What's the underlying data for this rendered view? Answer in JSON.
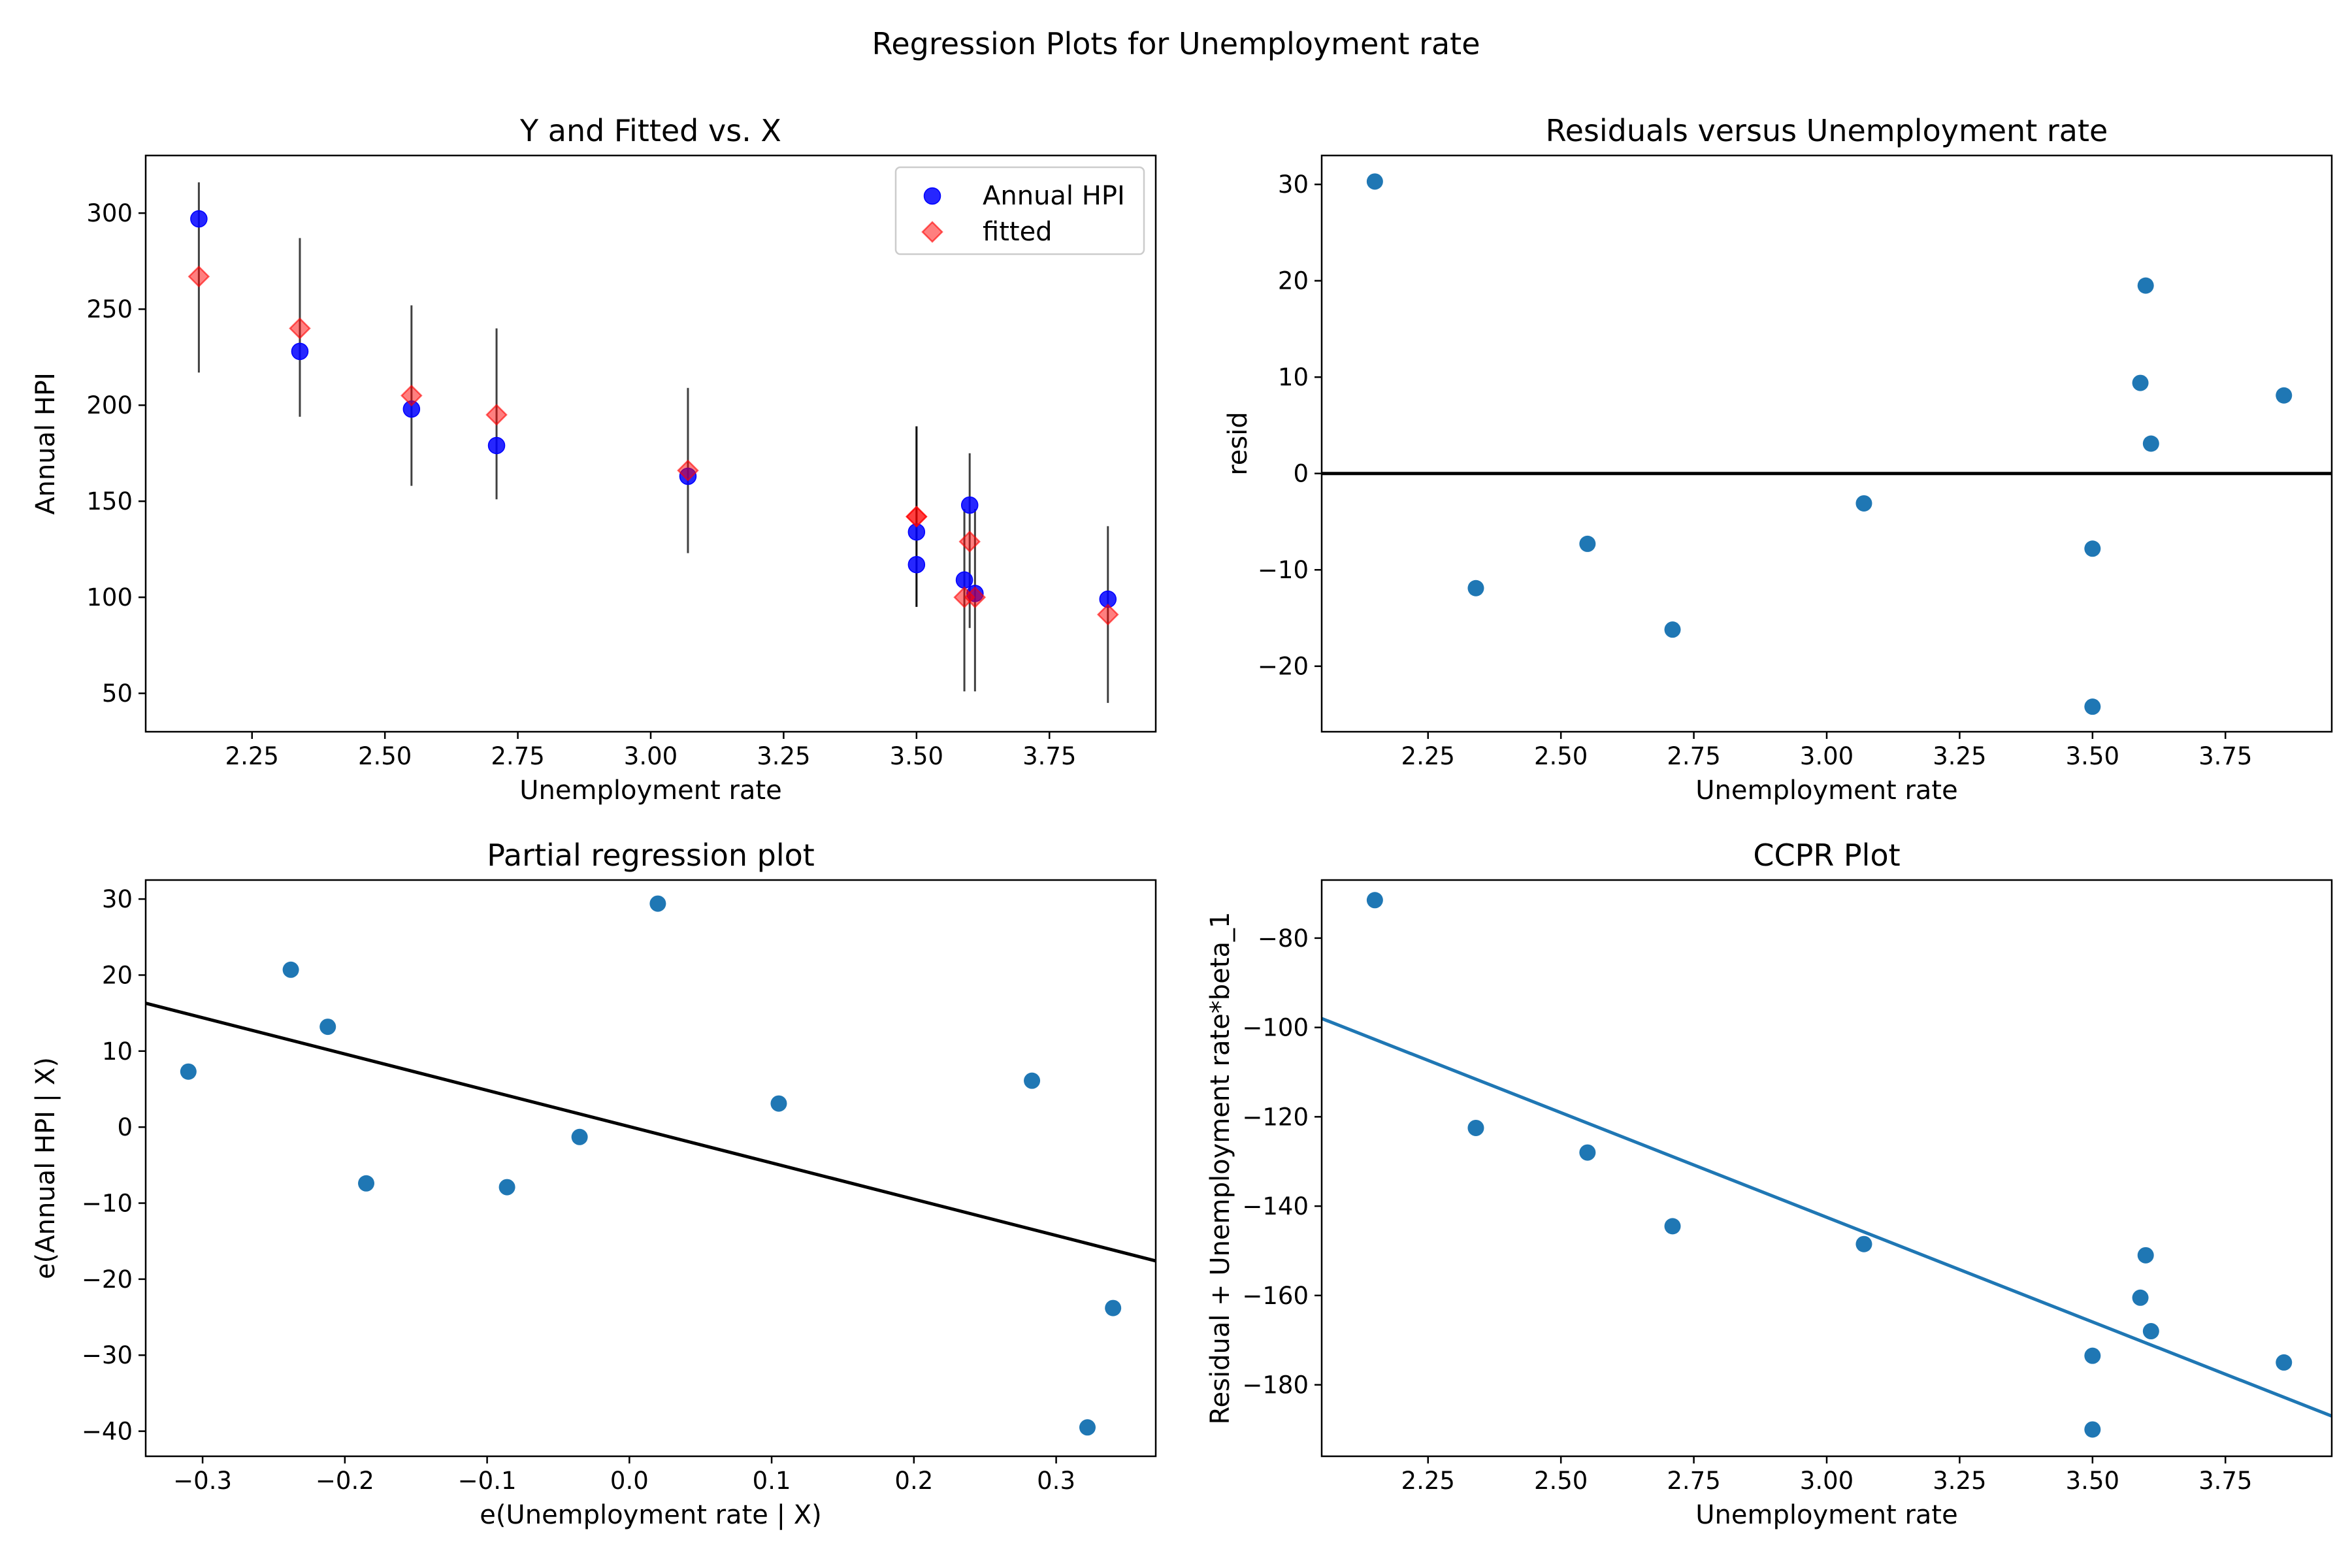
{
  "figure": {
    "suptitle": "Regression Plots for Unemployment rate"
  },
  "colors": {
    "observed": "#0000ff",
    "fitted": "#ff0000",
    "scatter": "#1f77b4",
    "line_black": "#000000",
    "line_blue": "#1f77b4",
    "errorbar": "#000000"
  },
  "chart_data": [
    {
      "id": "yfit",
      "type": "scatter",
      "title": "Y and Fitted vs. X",
      "xlabel": "Unemployment rate",
      "ylabel": "Annual HPI",
      "xlim": [
        2.05,
        3.95
      ],
      "ylim": [
        30,
        330
      ],
      "xticks": [
        2.25,
        2.5,
        2.75,
        3.0,
        3.25,
        3.5,
        3.75
      ],
      "xtick_labels": [
        "2.25",
        "2.50",
        "2.75",
        "3.00",
        "3.25",
        "3.50",
        "3.75"
      ],
      "yticks": [
        50,
        100,
        150,
        200,
        250,
        300
      ],
      "ytick_labels": [
        "50",
        "100",
        "150",
        "200",
        "250",
        "300"
      ],
      "legend": {
        "placement": "upper-right",
        "entries": [
          "Annual HPI",
          "fitted"
        ]
      },
      "series": [
        {
          "name": "Annual HPI",
          "marker": "circle",
          "points": [
            [
              2.15,
              297
            ],
            [
              2.34,
              228
            ],
            [
              2.55,
              198
            ],
            [
              2.71,
              179
            ],
            [
              3.07,
              163
            ],
            [
              3.5,
              134
            ],
            [
              3.5,
              117
            ],
            [
              3.59,
              109
            ],
            [
              3.6,
              148
            ],
            [
              3.61,
              102
            ],
            [
              3.86,
              99
            ]
          ]
        },
        {
          "name": "fitted",
          "marker": "diamond",
          "points": [
            [
              2.15,
              267
            ],
            [
              2.34,
              240
            ],
            [
              2.55,
              205
            ],
            [
              2.71,
              195
            ],
            [
              3.07,
              166
            ],
            [
              3.5,
              142
            ],
            [
              3.5,
              142
            ],
            [
              3.59,
              100
            ],
            [
              3.6,
              129
            ],
            [
              3.61,
              100
            ],
            [
              3.86,
              91
            ]
          ]
        }
      ],
      "errorbars": [
        [
          2.15,
          217,
          316
        ],
        [
          2.34,
          194,
          287
        ],
        [
          2.55,
          158,
          252
        ],
        [
          2.71,
          151,
          240
        ],
        [
          3.07,
          123,
          209
        ],
        [
          3.5,
          95,
          189
        ],
        [
          3.5,
          95,
          189
        ],
        [
          3.59,
          51,
          146
        ],
        [
          3.6,
          84,
          175
        ],
        [
          3.61,
          51,
          146
        ],
        [
          3.86,
          45,
          137
        ]
      ]
    },
    {
      "id": "resid",
      "type": "scatter",
      "title": "Residuals versus Unemployment rate",
      "xlabel": "Unemployment rate",
      "ylabel": "resid",
      "xlim": [
        2.05,
        3.95
      ],
      "ylim": [
        -26.8,
        33
      ],
      "xticks": [
        2.25,
        2.5,
        2.75,
        3.0,
        3.25,
        3.5,
        3.75
      ],
      "xtick_labels": [
        "2.25",
        "2.50",
        "2.75",
        "3.00",
        "3.25",
        "3.50",
        "3.75"
      ],
      "yticks": [
        -20,
        -10,
        0,
        10,
        20,
        30
      ],
      "ytick_labels": [
        "−20",
        "−10",
        "0",
        "10",
        "20",
        "30"
      ],
      "hline": 0,
      "points": [
        [
          2.15,
          30.3
        ],
        [
          2.34,
          -11.9
        ],
        [
          2.55,
          -7.3
        ],
        [
          2.71,
          -16.2
        ],
        [
          3.07,
          -3.1
        ],
        [
          3.5,
          -7.8
        ],
        [
          3.5,
          -24.2
        ],
        [
          3.59,
          9.4
        ],
        [
          3.6,
          19.5
        ],
        [
          3.61,
          3.1
        ],
        [
          3.86,
          8.1
        ]
      ]
    },
    {
      "id": "partreg",
      "type": "scatter",
      "title": "Partial regression plot",
      "xlabel": "e(Unemployment rate | X)",
      "ylabel": "e(Annual HPI | X)",
      "xlim": [
        -0.34,
        0.37
      ],
      "ylim": [
        -43.3,
        32.5
      ],
      "xticks": [
        -0.3,
        -0.2,
        -0.1,
        0.0,
        0.1,
        0.2,
        0.3
      ],
      "xtick_labels": [
        "−0.3",
        "−0.2",
        "−0.1",
        "0.0",
        "0.1",
        "0.2",
        "0.3"
      ],
      "yticks": [
        -40,
        -30,
        -20,
        -10,
        0,
        10,
        20,
        30
      ],
      "ytick_labels": [
        "−40",
        "−30",
        "−20",
        "−10",
        "0",
        "10",
        "20",
        "30"
      ],
      "fit_line": [
        [
          -0.34,
          16.3
        ],
        [
          0.37,
          -17.6
        ]
      ],
      "points": [
        [
          -0.31,
          7.3
        ],
        [
          -0.238,
          20.7
        ],
        [
          -0.212,
          13.2
        ],
        [
          -0.185,
          -7.4
        ],
        [
          -0.086,
          -7.9
        ],
        [
          -0.035,
          -1.3
        ],
        [
          0.02,
          29.4
        ],
        [
          0.105,
          3.1
        ],
        [
          0.283,
          6.1
        ],
        [
          0.322,
          -39.5
        ],
        [
          0.34,
          -23.8
        ]
      ]
    },
    {
      "id": "ccpr",
      "type": "scatter",
      "title": "CCPR Plot",
      "xlabel": "Unemployment rate",
      "ylabel": "Residual + Unemployment rate*beta_1",
      "xlim": [
        2.05,
        3.95
      ],
      "ylim": [
        -196,
        -67
      ],
      "xticks": [
        2.25,
        2.5,
        2.75,
        3.0,
        3.25,
        3.5,
        3.75
      ],
      "xtick_labels": [
        "2.25",
        "2.50",
        "2.75",
        "3.00",
        "3.25",
        "3.50",
        "3.75"
      ],
      "yticks": [
        -180,
        -160,
        -140,
        -120,
        -100,
        -80
      ],
      "ytick_labels": [
        "−180",
        "−160",
        "−140",
        "−120",
        "−100",
        "−80"
      ],
      "fit_line": [
        [
          2.05,
          -98
        ],
        [
          3.95,
          -187
        ]
      ],
      "points": [
        [
          2.15,
          -71.5
        ],
        [
          2.34,
          -122.5
        ],
        [
          2.55,
          -128
        ],
        [
          2.71,
          -144.5
        ],
        [
          3.07,
          -148.5
        ],
        [
          3.5,
          -173.5
        ],
        [
          3.5,
          -190
        ],
        [
          3.59,
          -160.5
        ],
        [
          3.6,
          -151
        ],
        [
          3.61,
          -168
        ],
        [
          3.86,
          -175
        ]
      ]
    }
  ]
}
